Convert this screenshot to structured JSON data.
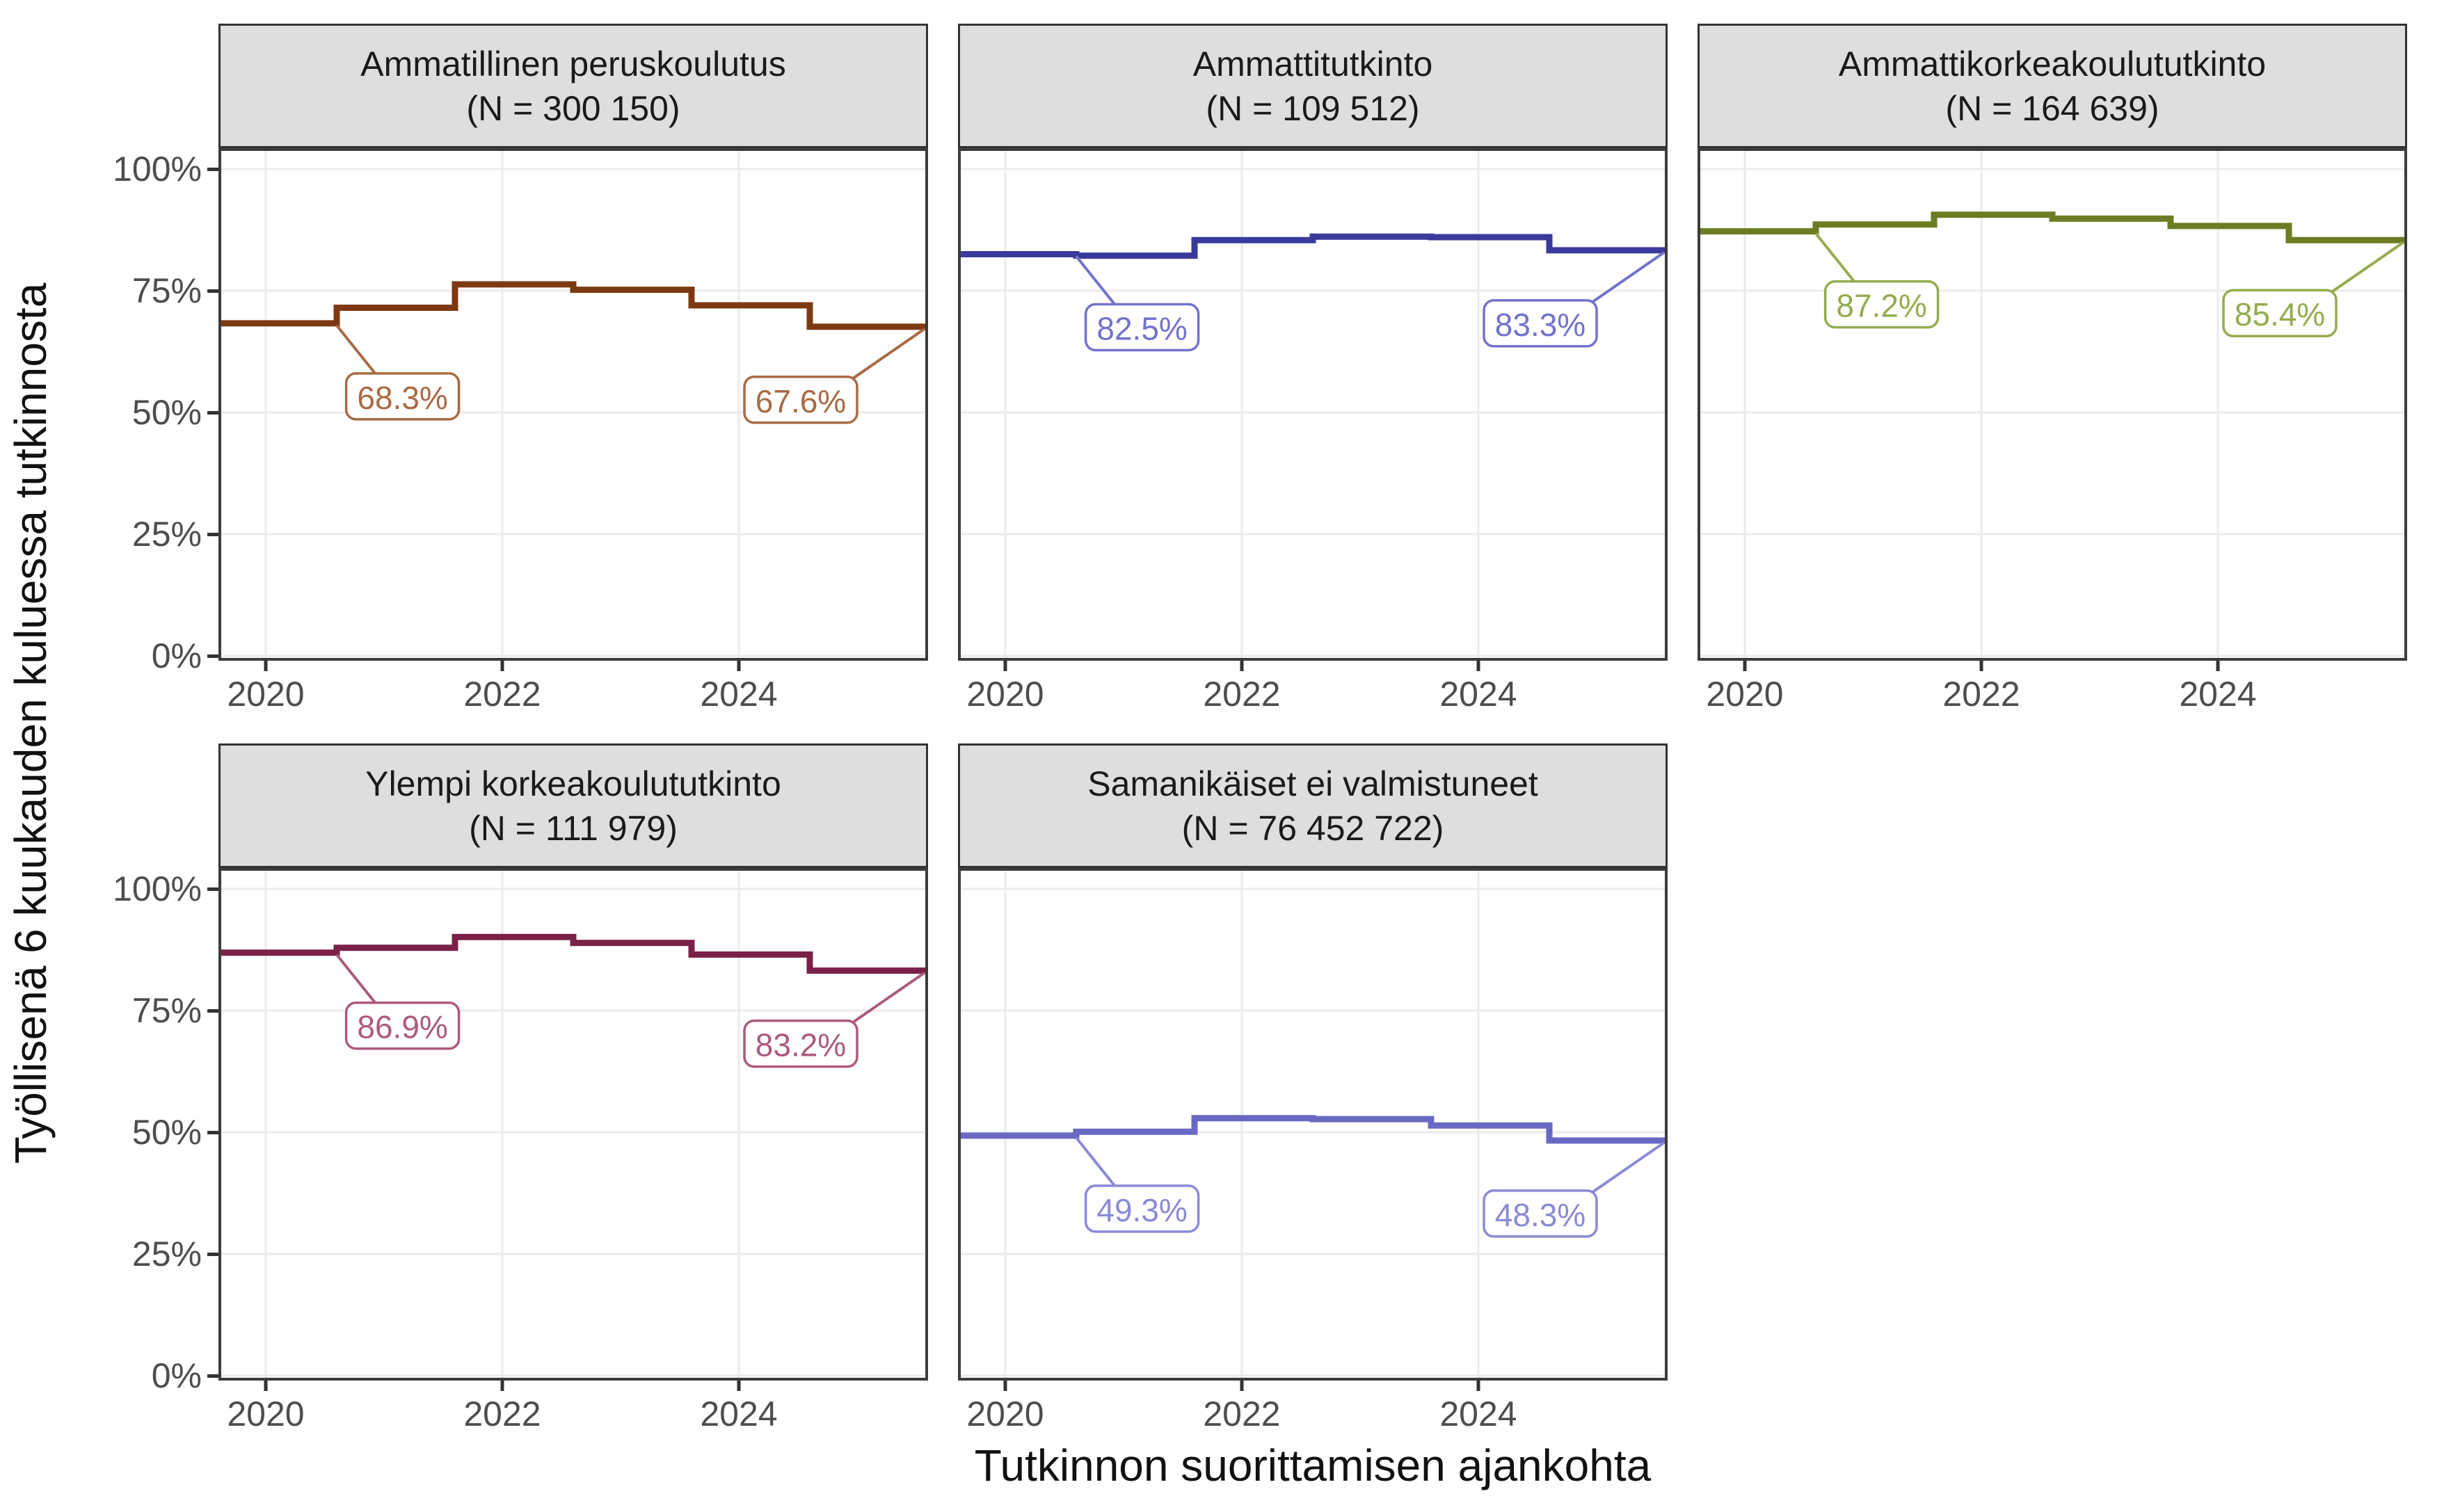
{
  "y_axis": {
    "title": "Työllisenä 6 kuukauden kuluessa tutkinnosta",
    "ticks": [
      "0%",
      "25%",
      "50%",
      "75%",
      "100%"
    ],
    "tick_values": [
      0,
      25,
      50,
      75,
      100
    ]
  },
  "x_axis": {
    "title": "Tutkinnon suorittamisen ajankohta",
    "ticks": [
      "2020",
      "2022",
      "2024"
    ],
    "tick_values": [
      2020,
      2022,
      2024
    ]
  },
  "style": {
    "background": "#FFFFFF",
    "panel_background": "#FFFFFF",
    "grid_color": "#EBEBEB",
    "panel_border_color": "#3C3C3C",
    "strip_background": "#DEDEDE",
    "strip_border_color": "#333333",
    "strip_text_color": "#1A1A1A",
    "axis_text_color": "#4D4D4D",
    "axis_title_color": "#111111",
    "tick_mark_color": "#333333"
  },
  "chart_data": {
    "type": "line",
    "subtype": "step",
    "title": "",
    "xlabel": "Tutkinnon suorittamisen ajankohta",
    "ylabel": "Työllisenä 6 kuukauden kuluessa tutkinnosta",
    "xlim": [
      2019.6,
      2025.6
    ],
    "ylim": [
      0,
      100
    ],
    "x_breaks": [
      2020,
      2022,
      2024
    ],
    "y_breaks": [
      0,
      25,
      50,
      75,
      100
    ],
    "grid": "major only",
    "legend_position": "none",
    "step_breaks": [
      2020.6,
      2021.6,
      2022.6,
      2023.6,
      2024.6
    ],
    "facets": [
      {
        "title": "Ammatillinen peruskoulutus",
        "n_label": "(N = 300 150)",
        "color": "#7D3A12",
        "label_color": "#A96A44",
        "values": [
          68.3,
          71.5,
          76.3,
          75.2,
          72.0,
          67.6
        ],
        "callouts": [
          {
            "label": "68.3%",
            "year": 2020.6,
            "value": 68.3,
            "position": "start"
          },
          {
            "label": "67.6%",
            "year": 2025.6,
            "value": 67.6,
            "position": "end"
          }
        ]
      },
      {
        "title": "Ammattitutkinto",
        "n_label": "(N = 109 512)",
        "color": "#3A3A9C",
        "label_color": "#7272CC",
        "values": [
          82.5,
          82.2,
          85.4,
          86.1,
          86.0,
          83.3
        ],
        "callouts": [
          {
            "label": "82.5%",
            "year": 2020.6,
            "value": 82.5,
            "position": "start"
          },
          {
            "label": "83.3%",
            "year": 2025.6,
            "value": 83.3,
            "position": "end"
          }
        ]
      },
      {
        "title": "Ammattikorkeakoulututkinto",
        "n_label": "(N = 164 639)",
        "color": "#6B7D22",
        "label_color": "#94AC4E",
        "values": [
          87.2,
          88.6,
          90.6,
          89.8,
          88.3,
          85.4
        ],
        "callouts": [
          {
            "label": "87.2%",
            "year": 2020.6,
            "value": 87.2,
            "position": "start"
          },
          {
            "label": "85.4%",
            "year": 2025.6,
            "value": 85.4,
            "position": "end"
          }
        ]
      },
      {
        "title": "Ylempi korkeakoulututkinto",
        "n_label": "(N = 111 979)",
        "color": "#7A2148",
        "label_color": "#AC5A7E",
        "values": [
          86.9,
          87.9,
          90.1,
          88.9,
          86.5,
          83.2
        ],
        "callouts": [
          {
            "label": "86.9%",
            "year": 2020.6,
            "value": 86.9,
            "position": "start"
          },
          {
            "label": "83.2%",
            "year": 2025.6,
            "value": 83.2,
            "position": "end"
          }
        ]
      },
      {
        "title": "Samanikäiset ei valmistuneet",
        "n_label": "(N = 76 452 722)",
        "color": "#6969C4",
        "label_color": "#8A8AD6",
        "values": [
          49.3,
          50.1,
          52.9,
          52.7,
          51.4,
          48.3
        ],
        "callouts": [
          {
            "label": "49.3%",
            "year": 2020.6,
            "value": 49.3,
            "position": "start"
          },
          {
            "label": "48.3%",
            "year": 2025.6,
            "value": 48.3,
            "position": "end"
          }
        ]
      }
    ]
  }
}
